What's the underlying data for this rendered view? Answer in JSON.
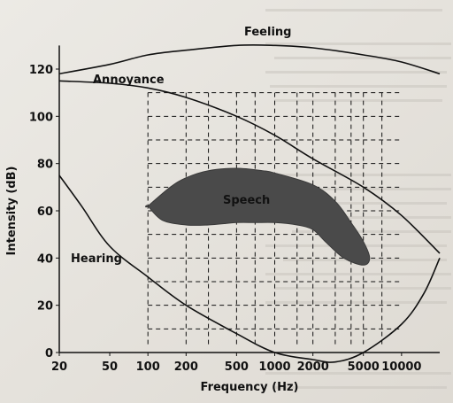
{
  "chart_data": {
    "type": "area",
    "title": "",
    "xlabel": "Frequency (Hz)",
    "ylabel": "Intensity (dB)",
    "xscale": "log",
    "xlim": [
      20,
      20000
    ],
    "ylim": [
      0,
      130
    ],
    "x_ticks": [
      20,
      50,
      100,
      200,
      500,
      1000,
      2000,
      5000,
      10000
    ],
    "x_tick_labels": [
      "20",
      "50",
      "100",
      "200",
      "500",
      "1000",
      "2000",
      "5000",
      "10000"
    ],
    "y_ticks": [
      0,
      20,
      40,
      60,
      80,
      100,
      120
    ],
    "y_tick_labels": [
      "0",
      "20",
      "40",
      "60",
      "80",
      "100",
      "120"
    ],
    "grid": "dashed (partial)",
    "series": [
      {
        "name": "Feeling",
        "x": [
          20,
          50,
          100,
          200,
          500,
          1000,
          2000,
          5000,
          10000,
          20000
        ],
        "y": [
          118,
          122,
          126,
          128,
          130,
          130,
          129,
          126,
          123,
          118
        ]
      },
      {
        "name": "Annoyance",
        "x": [
          20,
          50,
          100,
          200,
          500,
          1000,
          2000,
          5000,
          10000,
          20000
        ],
        "y": [
          115,
          114,
          112,
          108,
          100,
          92,
          82,
          70,
          58,
          42
        ]
      },
      {
        "name": "Hearing",
        "x": [
          20,
          30,
          50,
          100,
          200,
          500,
          1000,
          2000,
          3000,
          5000,
          10000,
          15000,
          20000
        ],
        "y": [
          75,
          62,
          45,
          32,
          20,
          8,
          0,
          -3,
          -4,
          0,
          12,
          25,
          40
        ]
      },
      {
        "name": "Speech",
        "x": [
          100,
          150,
          200,
          300,
          500,
          800,
          1000,
          2000,
          3000,
          4000,
          5000,
          5600,
          5000,
          3500,
          2500,
          2000,
          1500,
          1000,
          700,
          500,
          300,
          200,
          130,
          100
        ],
        "y": [
          62,
          70,
          74,
          77,
          78,
          77,
          76,
          71,
          64,
          55,
          47,
          40,
          37,
          40,
          47,
          52,
          54,
          55,
          55,
          55,
          54,
          54,
          56,
          62
        ]
      }
    ],
    "labels": {
      "feeling": "Feeling",
      "annoyance": "Annoyance",
      "speech": "Speech",
      "hearing": "Hearing"
    }
  }
}
